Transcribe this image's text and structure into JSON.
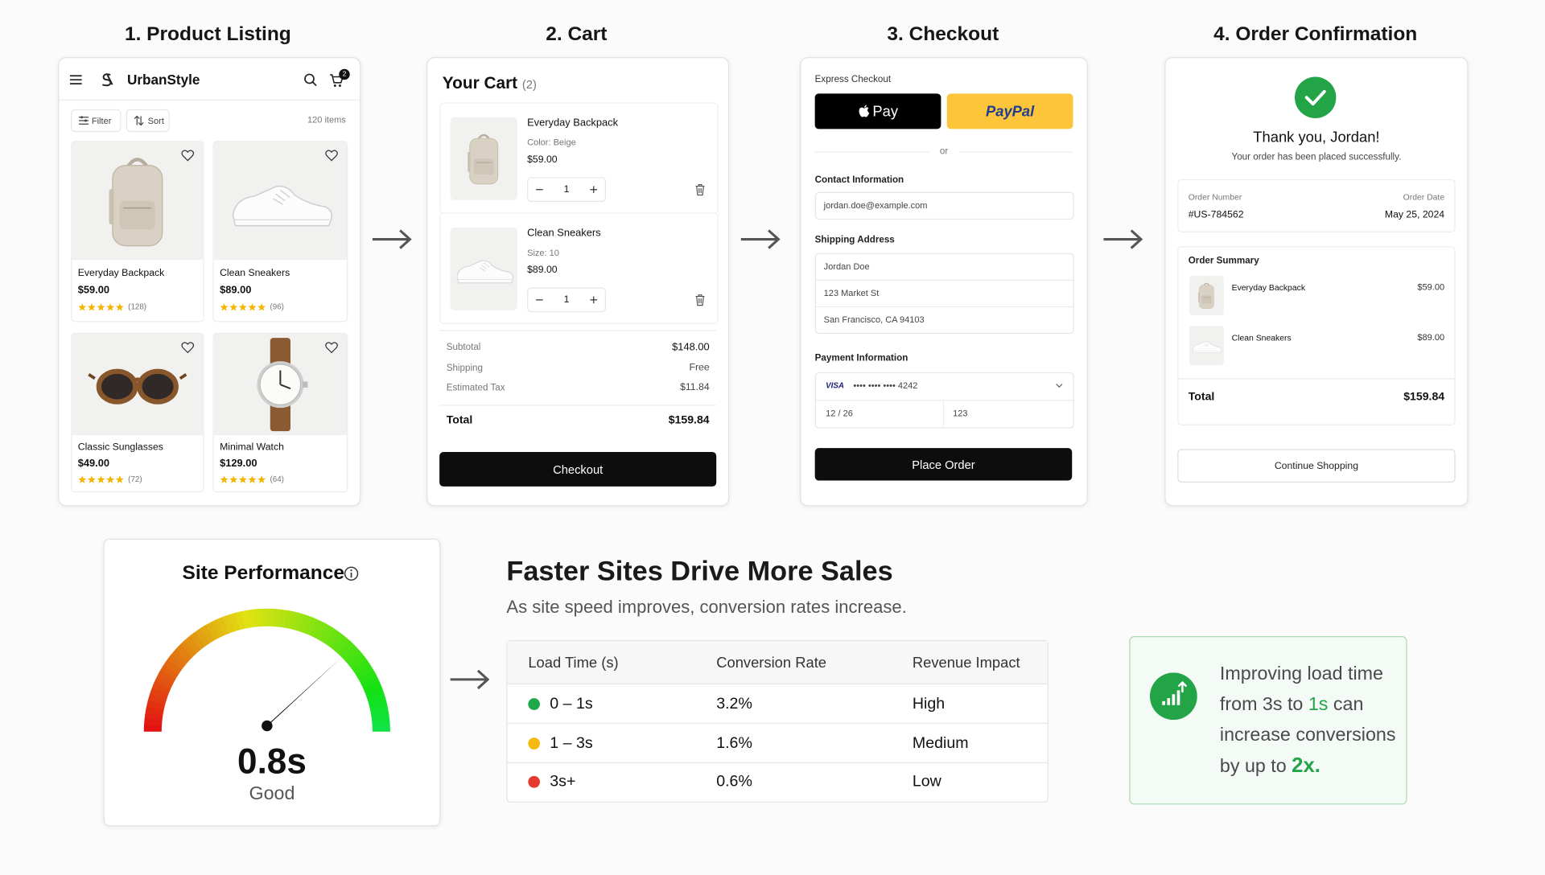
{
  "steps": [
    "1. Product Listing",
    "2. Cart",
    "3. Checkout",
    "4. Order Confirmation"
  ],
  "listing": {
    "brand": "UrbanStyle",
    "cart_badge": "2",
    "filter": "Filter",
    "sort": "Sort",
    "count": "120 items",
    "products": [
      {
        "name": "Everyday Backpack",
        "price": "$59.00",
        "reviews": "(128)"
      },
      {
        "name": "Clean Sneakers",
        "price": "$89.00",
        "reviews": "(96)"
      },
      {
        "name": "Classic Sunglasses",
        "price": "$49.00",
        "reviews": "(72)"
      },
      {
        "name": "Minimal Watch",
        "price": "$129.00",
        "reviews": "(64)"
      }
    ]
  },
  "cart": {
    "title": "Your Cart",
    "count": "(2)",
    "items": [
      {
        "name": "Everyday Backpack",
        "variant": "Color: Beige",
        "price": "$59.00",
        "qty": "1"
      },
      {
        "name": "Clean Sneakers",
        "variant": "Size: 10",
        "price": "$89.00",
        "qty": "1"
      }
    ],
    "summary": [
      [
        "Subtotal",
        "$148.00"
      ],
      [
        "Shipping",
        "Free"
      ],
      [
        "Estimated Tax",
        "$11.84"
      ]
    ],
    "total_label": "Total",
    "total": "$159.84",
    "button": "Checkout"
  },
  "checkout": {
    "express": "Express Checkout",
    "apple_pay": "Pay",
    "paypal": "PayPal",
    "or": "or",
    "contact_label": "Contact Information",
    "email": "jordan.doe@example.com",
    "shipping_label": "Shipping Address",
    "address": [
      "Jordan Doe",
      "123 Market St",
      "San Francisco, CA 94103"
    ],
    "payment_label": "Payment Information",
    "card_brand": "VISA",
    "card_number": "•••• •••• •••• 4242",
    "expiry": "12 / 26",
    "cvc": "123",
    "button": "Place Order"
  },
  "confirmation": {
    "heading": "Thank you, Jordan!",
    "message": "Your order has been placed successfully.",
    "order_number_label": "Order Number",
    "order_number": "#US-784562",
    "order_date_label": "Order Date",
    "order_date": "May 25, 2024",
    "summary_label": "Order Summary",
    "items": [
      {
        "name": "Everyday Backpack",
        "price": "$59.00"
      },
      {
        "name": "Clean Sneakers",
        "price": "$89.00"
      }
    ],
    "total_label": "Total",
    "total": "$159.84",
    "button": "Continue Shopping"
  },
  "performance": {
    "title": "Site Performance",
    "value": "0.8s",
    "rating": "Good"
  },
  "headline": {
    "title": "Faster Sites Drive More Sales",
    "subtitle": "As site speed improves, conversion rates increase."
  },
  "table": {
    "headers": [
      "Load Time (s)",
      "Conversion Rate",
      "Revenue Impact"
    ],
    "rows": [
      [
        "0 – 1s",
        "3.2%",
        "High"
      ],
      [
        "1 – 3s",
        "1.6%",
        "Medium"
      ],
      [
        "3s+",
        "0.6%",
        "Low"
      ]
    ]
  },
  "callout": {
    "segments": [
      "Improving load time",
      "from 3s to",
      "1s",
      "can",
      "increase conversions",
      "by up to",
      "2x."
    ]
  }
}
